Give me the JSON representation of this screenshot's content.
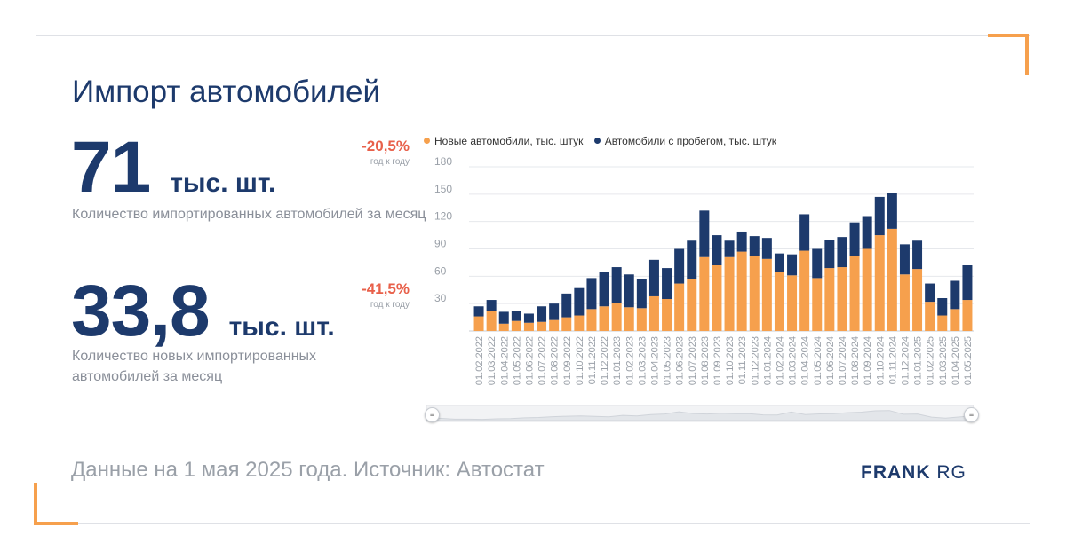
{
  "title": "Импорт автомобилей",
  "stat1": {
    "value": "71",
    "unit": "тыс. шт.",
    "change": "-20,5%",
    "change_label": "год к году",
    "description": "Количество импортированных автомобилей за месяц"
  },
  "stat2": {
    "value": "33,8",
    "unit": "тыс. шт.",
    "change": "-41,5%",
    "change_label": "год к году",
    "description": "Количество новых импортированных автомобилей за месяц"
  },
  "footer": "Данные на 1 мая 2025 года. Источник: Автостат",
  "logo": {
    "bold": "FRANK",
    "light": "RG"
  },
  "colors": {
    "new": "#f6a04d",
    "used": "#1d3a6c",
    "accent": "#f6a04d",
    "negative": "#e8604a"
  },
  "navigator": {
    "handle_icon": "grip-icon"
  },
  "chart_data": {
    "type": "bar",
    "stacked": true,
    "ylim": [
      0,
      180
    ],
    "yticks": [
      30,
      60,
      90,
      120,
      150,
      180
    ],
    "grid": true,
    "legend_position": "top",
    "categories": [
      "01.02.2022",
      "01.03.2022",
      "01.04.2022",
      "01.05.2022",
      "01.06.2022",
      "01.07.2022",
      "01.08.2022",
      "01.09.2022",
      "01.10.2022",
      "01.11.2022",
      "01.12.2022",
      "01.01.2023",
      "01.02.2023",
      "01.03.2023",
      "01.04.2023",
      "01.05.2023",
      "01.06.2023",
      "01.07.2023",
      "01.08.2023",
      "01.09.2023",
      "01.10.2023",
      "01.11.2023",
      "01.12.2023",
      "01.01.2024",
      "01.02.2024",
      "01.03.2024",
      "01.04.2024",
      "01.05.2024",
      "01.06.2024",
      "01.07.2024",
      "01.08.2024",
      "01.09.2024",
      "01.10.2024",
      "01.11.2024",
      "01.12.2024",
      "01.01.2025",
      "01.02.2025",
      "01.03.2025",
      "01.04.2025",
      "01.05.2025"
    ],
    "series": [
      {
        "name": "Новые автомобили, тыс. штук",
        "values": [
          16,
          22,
          8,
          11,
          9,
          10,
          12,
          15,
          17,
          24,
          27,
          31,
          26,
          25,
          38,
          35,
          52,
          57,
          81,
          72,
          81,
          87,
          82,
          79,
          65,
          61,
          88,
          58,
          69,
          70,
          82,
          90,
          105,
          112,
          62,
          68,
          32,
          17,
          24,
          34
        ]
      },
      {
        "name": "Автомобили с пробегом, тыс. штук",
        "values": [
          11,
          12,
          13,
          11,
          10,
          17,
          18,
          26,
          30,
          34,
          38,
          39,
          36,
          32,
          40,
          34,
          38,
          42,
          51,
          33,
          18,
          22,
          22,
          23,
          20,
          23,
          40,
          32,
          31,
          33,
          37,
          36,
          42,
          39,
          33,
          31,
          20,
          19,
          31,
          38
        ]
      }
    ]
  }
}
